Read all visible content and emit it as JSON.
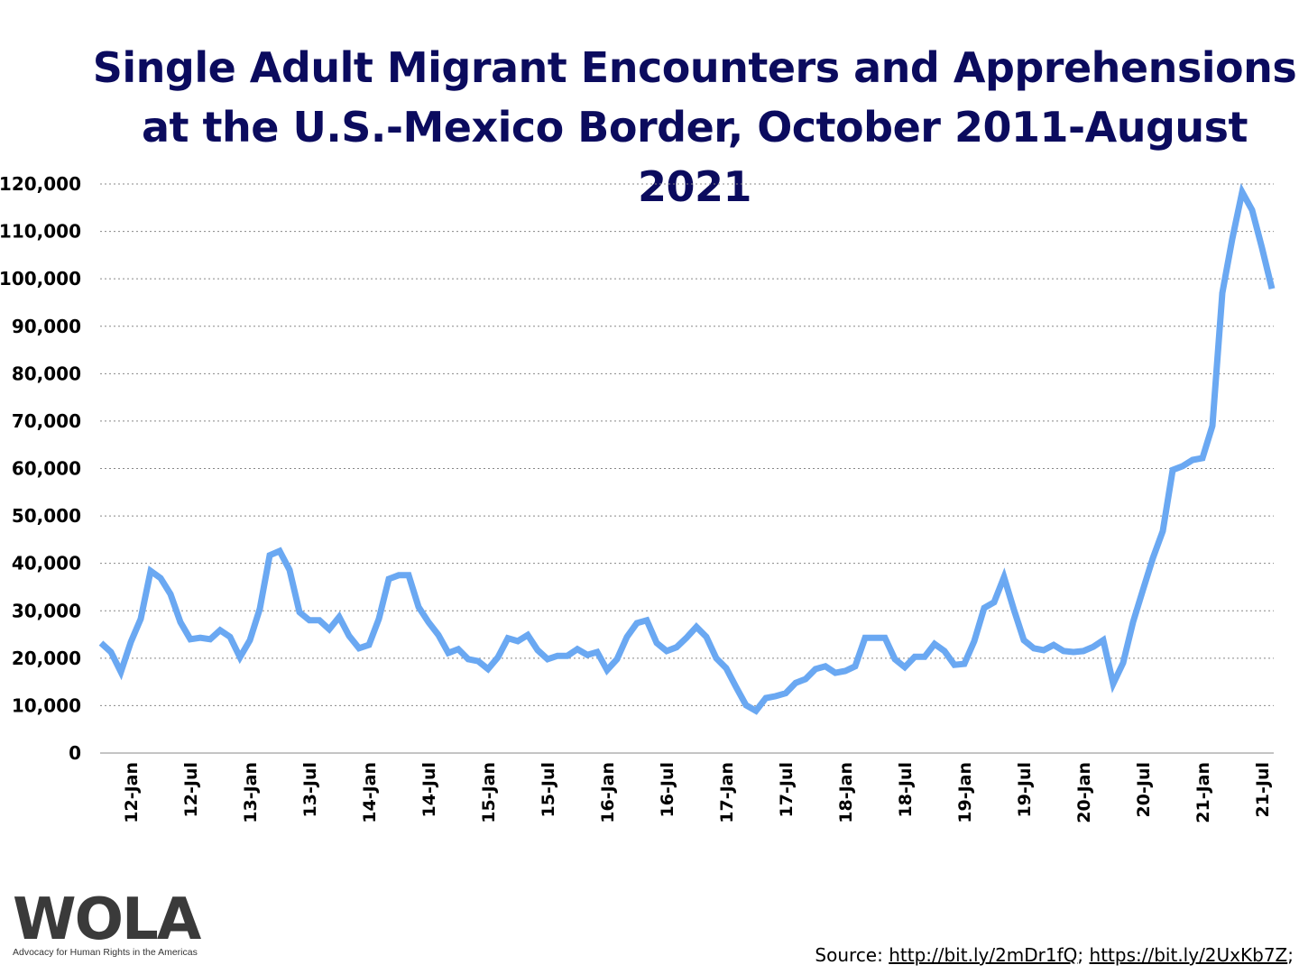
{
  "chart_data": {
    "type": "line",
    "title": "Single Adult Migrant Encounters and Apprehensions at the U.S.-Mexico Border, October 2011-August 2021",
    "xlabel": "",
    "ylabel": "",
    "ylim": [
      0,
      120000
    ],
    "yticks": [
      "0",
      "10,000",
      "20,000",
      "30,000",
      "40,000",
      "50,000",
      "60,000",
      "70,000",
      "80,000",
      "90,000",
      "100,000",
      "110,000",
      "120,000"
    ],
    "xticks": [
      "12-Jan",
      "12-Jul",
      "13-Jan",
      "13-Jul",
      "14-Jan",
      "14-Jul",
      "15-Jan",
      "15-Jul",
      "16-Jan",
      "16-Jul",
      "17-Jan",
      "17-Jul",
      "18-Jan",
      "18-Jul",
      "19-Jan",
      "19-Jul",
      "20-Jan",
      "20-Jul",
      "21-Jan",
      "21-Jul"
    ],
    "x_start": "2011-10",
    "x_end": "2021-08",
    "grid": "horizontal dotted",
    "line_color": "#6aa8f2",
    "values": [
      23200,
      21300,
      17100,
      23400,
      28300,
      38400,
      36900,
      33500,
      27600,
      24000,
      24300,
      24000,
      25900,
      24500,
      20200,
      23800,
      30400,
      41700,
      42600,
      38600,
      29700,
      28000,
      28000,
      26100,
      28700,
      24700,
      22100,
      22800,
      28300,
      36700,
      37500,
      37500,
      30800,
      27600,
      24900,
      21100,
      21900,
      19800,
      19400,
      17700,
      20200,
      24200,
      23600,
      24900,
      21700,
      19800,
      20500,
      20500,
      21900,
      20700,
      21300,
      17500,
      19800,
      24500,
      27400,
      28000,
      23200,
      21500,
      22300,
      24300,
      26600,
      24500,
      20000,
      17900,
      13900,
      10100,
      8900,
      11600,
      12000,
      12600,
      14800,
      15600,
      17700,
      18300,
      16900,
      17300,
      18300,
      24300,
      24300,
      24300,
      19800,
      18100,
      20300,
      20300,
      23000,
      21500,
      18600,
      18800,
      23600,
      30600,
      31800,
      37100,
      30200,
      23800,
      22100,
      21700,
      22800,
      21500,
      21300,
      21500,
      22400,
      23800,
      14600,
      19000,
      27600,
      34400,
      41100,
      46800,
      59700,
      60500,
      61800,
      62200,
      69000,
      97000,
      108400,
      118300,
      114500,
      106500,
      97900
    ]
  },
  "logo": {
    "text": "WOLA",
    "tagline": "Advocacy for Human Rights in the Americas"
  },
  "source": {
    "label": "Source: ",
    "link1": "http://bit.ly/2mDr1fQ",
    "sep": "; ",
    "link2": "https://bit.ly/2UxKb7Z",
    "end": ";"
  }
}
